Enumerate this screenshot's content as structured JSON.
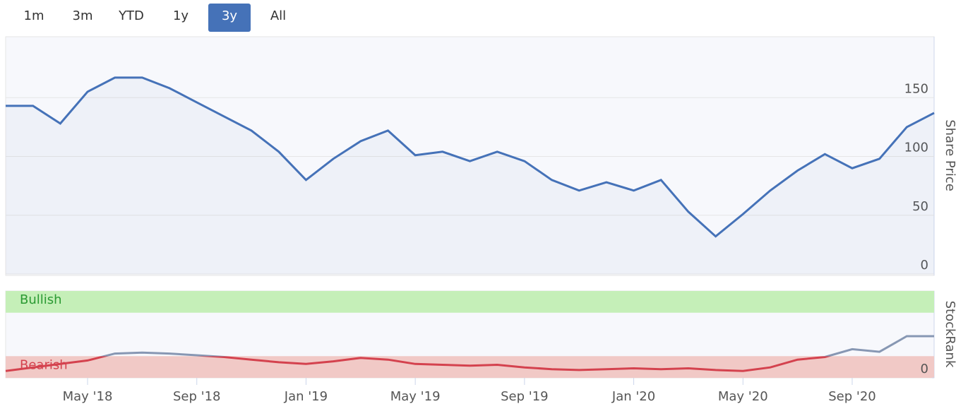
{
  "range_selector": {
    "buttons": [
      "1m",
      "3m",
      "YTD",
      "1y",
      "3y",
      "All"
    ],
    "selected": "3y"
  },
  "chart_data": [
    {
      "type": "area",
      "y_axis_label": "Share Price",
      "color": "#4572b8",
      "x": [
        "2018-02",
        "2018-03",
        "2018-04",
        "2018-05",
        "2018-06",
        "2018-07",
        "2018-08",
        "2018-09",
        "2018-10",
        "2018-11",
        "2018-12",
        "2019-01",
        "2019-02",
        "2019-03",
        "2019-04",
        "2019-05",
        "2019-06",
        "2019-07",
        "2019-08",
        "2019-09",
        "2019-10",
        "2019-11",
        "2019-12",
        "2020-01",
        "2020-02",
        "2020-03",
        "2020-04",
        "2020-05",
        "2020-06",
        "2020-07",
        "2020-08",
        "2020-09",
        "2020-10",
        "2020-11",
        "2020-12"
      ],
      "values": [
        143,
        143,
        128,
        155,
        167,
        167,
        158,
        146,
        134,
        122,
        104,
        80,
        98,
        113,
        122,
        101,
        104,
        96,
        104,
        96,
        80,
        71,
        78,
        71,
        80,
        53,
        32,
        51,
        71,
        88,
        102,
        90,
        98,
        125,
        137
      ],
      "xlim": [
        "2018-02",
        "2020-12"
      ],
      "ylim": [
        0,
        200
      ],
      "yticks": [
        0,
        50,
        100,
        150
      ],
      "grid": true
    },
    {
      "type": "line",
      "y_axis_label": "StockRank",
      "threshold": 25,
      "color_below": "#d4424e",
      "color_above": "#8797b3",
      "bands": [
        {
          "label": "Bullish",
          "from": 75,
          "to": 100,
          "color": "#c5efb8",
          "text_color": "#2b9a33"
        },
        {
          "label": "Bearish",
          "from": 0,
          "to": 25,
          "color": "#f1c9c6",
          "text_color": "#d4424e"
        }
      ],
      "x": [
        "2018-02",
        "2018-03",
        "2018-04",
        "2018-05",
        "2018-06",
        "2018-07",
        "2018-08",
        "2018-09",
        "2018-10",
        "2018-11",
        "2018-12",
        "2019-01",
        "2019-02",
        "2019-03",
        "2019-04",
        "2019-05",
        "2019-06",
        "2019-07",
        "2019-08",
        "2019-09",
        "2019-10",
        "2019-11",
        "2019-12",
        "2020-01",
        "2020-02",
        "2020-03",
        "2020-04",
        "2020-05",
        "2020-06",
        "2020-07",
        "2020-08",
        "2020-09",
        "2020-10",
        "2020-11",
        "2020-12"
      ],
      "values": [
        8,
        12,
        16,
        20,
        28,
        29,
        28,
        26,
        24,
        21,
        18,
        16,
        19,
        23,
        21,
        16,
        15,
        14,
        15,
        12,
        10,
        9,
        10,
        11,
        10,
        11,
        9,
        8,
        12,
        21,
        24,
        33,
        30,
        48,
        48
      ],
      "xlim": [
        "2018-02",
        "2020-12"
      ],
      "ylim": [
        0,
        100
      ],
      "yticks": [
        0
      ],
      "xticks": [
        {
          "value": "2018-05",
          "label": "May '18"
        },
        {
          "value": "2018-09",
          "label": "Sep '18"
        },
        {
          "value": "2019-01",
          "label": "Jan '19"
        },
        {
          "value": "2019-05",
          "label": "May '19"
        },
        {
          "value": "2019-09",
          "label": "Sep '19"
        },
        {
          "value": "2020-01",
          "label": "Jan '20"
        },
        {
          "value": "2020-05",
          "label": "May '20"
        },
        {
          "value": "2020-09",
          "label": "Sep '20"
        }
      ]
    }
  ]
}
